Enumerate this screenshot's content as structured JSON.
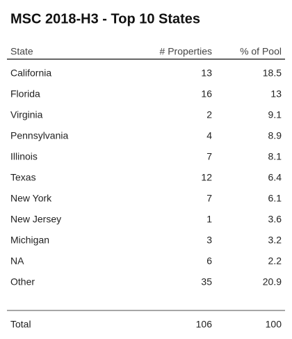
{
  "title": "MSC 2018-H3 - Top 10 States",
  "table": {
    "columns": [
      "State",
      "# Properties",
      "% of Pool"
    ],
    "rows": [
      [
        "California",
        13,
        18.5
      ],
      [
        "Florida",
        16,
        13
      ],
      [
        "Virginia",
        2,
        9.1
      ],
      [
        "Pennsylvania",
        4,
        8.9
      ],
      [
        "Illinois",
        7,
        8.1
      ],
      [
        "Texas",
        12,
        6.4
      ],
      [
        "New York",
        7,
        6.1
      ],
      [
        "New Jersey",
        1,
        3.6
      ],
      [
        "Michigan",
        3,
        3.2
      ],
      [
        "NA",
        6,
        2.2
      ],
      [
        "Other",
        35,
        20.9
      ]
    ],
    "total": [
      "Total",
      106,
      100
    ]
  }
}
